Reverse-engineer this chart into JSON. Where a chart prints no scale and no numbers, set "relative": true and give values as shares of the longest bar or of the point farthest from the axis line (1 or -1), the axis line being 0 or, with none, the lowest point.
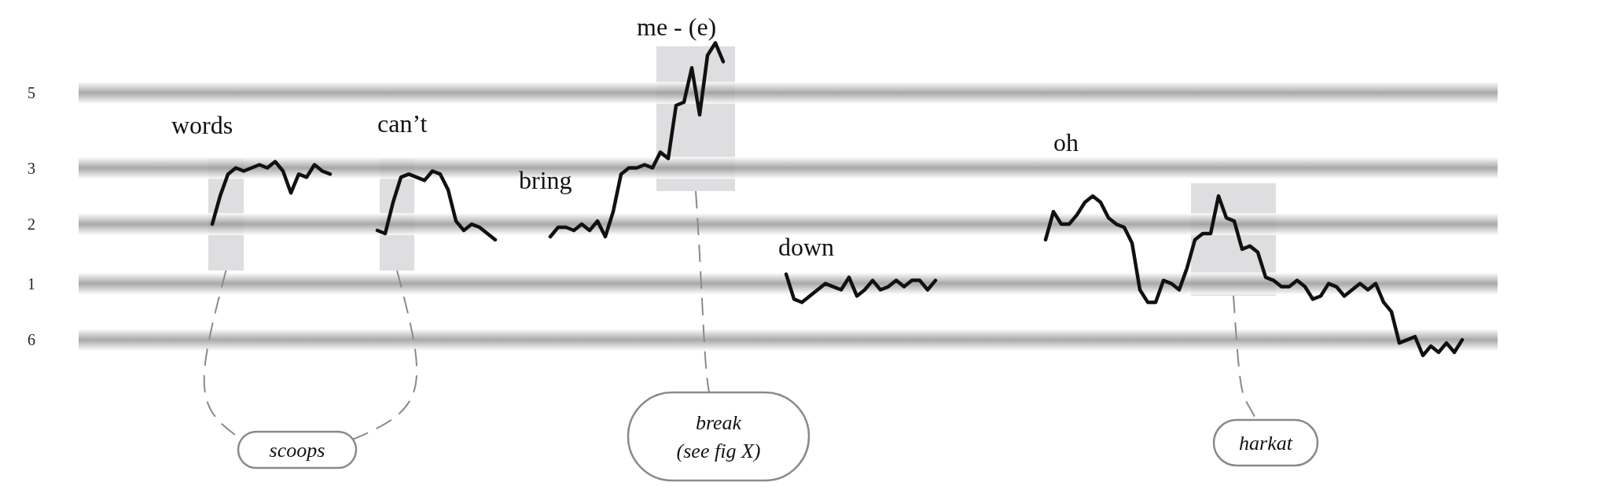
{
  "chart_data": {
    "type": "line",
    "relative": true,
    "categories": [
      null,
      null,
      null,
      null,
      null,
      null,
      null,
      null,
      null,
      null,
      null,
      null,
      null,
      null,
      null,
      null,
      null,
      null,
      null,
      null,
      null,
      null,
      null,
      null,
      null,
      null,
      null,
      null,
      null,
      null,
      null,
      null,
      null,
      null,
      null,
      null,
      null,
      null,
      null,
      null,
      null,
      null,
      null,
      null,
      null,
      null,
      null,
      null,
      null,
      null,
      null,
      null,
      null,
      null,
      null,
      null,
      null,
      null,
      null,
      null,
      null,
      null,
      null,
      null,
      null,
      null,
      null,
      null,
      null,
      null,
      null,
      null,
      null,
      null,
      null,
      null,
      null,
      null,
      null,
      null,
      null,
      null,
      null,
      null,
      null,
      null,
      null,
      null,
      null,
      null,
      null,
      null,
      null,
      null,
      null,
      null,
      null,
      null,
      null,
      null,
      null,
      null,
      null,
      null,
      null,
      null,
      null,
      null,
      null,
      null,
      null,
      null,
      null,
      null,
      null,
      null,
      null,
      null,
      null,
      null,
      null,
      null,
      null,
      null,
      null,
      null,
      null,
      null,
      null,
      null,
      null,
      null,
      null,
      null,
      null,
      null,
      null,
      null,
      null,
      null,
      null,
      null,
      null,
      null,
      null,
      null,
      null,
      null,
      null,
      null,
      null,
      null,
      null,
      null,
      null,
      null,
      null,
      null,
      null,
      null,
      null,
      null,
      null,
      null,
      null,
      null,
      null,
      null,
      null,
      null,
      null,
      null,
      null,
      null,
      null,
      null,
      null,
      null,
      null,
      null,
      null,
      null
    ],
    "series": [
      {
        "color": "#111111",
        "values": [
          null,
          null,
          null,
          null,
          null,
          null,
          null,
          null,
          null,
          null,
          null,
          null,
          null,
          null,
          null,
          null,
          null,
          0.42,
          0.51,
          0.58,
          0.6,
          0.59,
          0.6,
          0.61,
          0.6,
          0.62,
          0.59,
          0.52,
          0.58,
          0.57,
          0.61,
          0.59,
          0.58,
          null,
          null,
          null,
          null,
          null,
          null,
          null,
          null,
          null,
          null,
          null,
          null,
          null,
          null,
          null,
          null,
          null,
          null,
          null,
          null,
          null,
          null,
          null,
          null,
          null,
          null,
          null,
          null,
          null,
          null,
          null,
          null,
          null,
          null,
          null,
          null,
          null,
          null,
          null,
          null,
          null,
          null,
          null,
          null,
          null,
          null,
          null,
          null,
          null,
          null,
          null,
          null,
          null,
          null,
          null,
          null,
          null,
          null,
          null,
          null,
          null,
          null,
          null,
          null,
          null,
          null,
          null,
          null,
          null,
          null,
          null,
          null,
          null,
          null,
          null,
          null,
          null,
          null,
          null,
          null,
          null,
          null,
          null,
          null,
          null,
          null,
          null,
          null,
          null,
          null,
          null,
          null,
          null,
          null,
          null,
          null,
          null,
          null,
          null,
          null,
          null,
          null,
          null,
          null,
          null,
          null,
          null,
          null,
          null,
          null,
          null,
          null,
          null,
          null,
          null,
          null,
          null,
          null,
          null,
          null,
          null,
          null,
          null,
          null,
          null,
          null,
          null,
          null,
          null,
          null,
          null,
          null,
          null,
          null,
          null,
          null,
          null,
          null,
          null,
          null,
          null,
          null,
          null,
          null,
          null,
          null,
          null,
          null,
          null
        ]
      },
      {
        "color": "#111111",
        "values": [
          null,
          null,
          null,
          null,
          null,
          null,
          null,
          null,
          null,
          null,
          null,
          null,
          null,
          null,
          null,
          null,
          null,
          null,
          null,
          null,
          null,
          null,
          null,
          null,
          null,
          null,
          null,
          null,
          null,
          null,
          null,
          null,
          null,
          null,
          null,
          null,
          null,
          null,
          0.4,
          0.39,
          0.49,
          0.57,
          0.58,
          0.57,
          0.56,
          0.59,
          0.58,
          0.53,
          0.43,
          0.4,
          0.42,
          0.41,
          0.39,
          0.37,
          null,
          null,
          null,
          null,
          null,
          null,
          null,
          null,
          null,
          null,
          null,
          null,
          null,
          null,
          null,
          null,
          null,
          null,
          null,
          null,
          null,
          null,
          null,
          null,
          null,
          null,
          null,
          null,
          null,
          null,
          null,
          null,
          null,
          null,
          null,
          null,
          null,
          null,
          null,
          null,
          null,
          null,
          null,
          null,
          null,
          null,
          null,
          null,
          null,
          null,
          null,
          null,
          null,
          null,
          null,
          null,
          null,
          null,
          null,
          null,
          null,
          null,
          null,
          null,
          null,
          null,
          null,
          null,
          null,
          null,
          null,
          null,
          null,
          null,
          null,
          null,
          null,
          null,
          null,
          null,
          null,
          null,
          null,
          null,
          null,
          null,
          null,
          null,
          null,
          null,
          null,
          null,
          null,
          null,
          null,
          null,
          null,
          null,
          null,
          null,
          null,
          null,
          null,
          null,
          null,
          null,
          null,
          null,
          null,
          null,
          null,
          null,
          null,
          null,
          null,
          null,
          null,
          null,
          null,
          null,
          null,
          null,
          null,
          null,
          null,
          null,
          null,
          null
        ]
      },
      {
        "color": "#111111",
        "values": [
          null,
          null,
          null,
          null,
          null,
          null,
          null,
          null,
          null,
          null,
          null,
          null,
          null,
          null,
          null,
          null,
          null,
          null,
          null,
          null,
          null,
          null,
          null,
          null,
          null,
          null,
          null,
          null,
          null,
          null,
          null,
          null,
          null,
          null,
          null,
          null,
          null,
          null,
          null,
          null,
          null,
          null,
          null,
          null,
          null,
          null,
          null,
          null,
          null,
          null,
          null,
          null,
          null,
          null,
          null,
          null,
          null,
          null,
          null,
          null,
          0.38,
          0.41,
          0.41,
          0.4,
          0.42,
          0.4,
          0.43,
          0.38,
          0.46,
          0.58,
          0.6,
          0.6,
          0.61,
          0.6,
          0.65,
          0.63,
          0.8,
          0.81,
          0.92,
          0.77,
          0.96,
          1.0,
          0.94,
          null,
          null,
          null,
          null,
          null,
          null,
          null,
          null,
          null,
          null,
          null,
          null,
          null,
          null,
          null,
          null,
          null,
          null,
          null,
          null,
          null,
          null,
          null,
          null,
          null,
          null,
          null,
          null,
          null,
          null,
          null,
          null,
          null,
          null,
          null,
          null,
          null,
          null,
          null,
          null,
          null,
          null,
          null,
          null,
          null,
          null,
          null,
          null,
          null,
          null,
          null,
          null,
          null,
          null,
          null,
          null,
          null,
          null,
          null,
          null,
          null,
          null,
          null,
          null,
          null,
          null,
          null,
          null,
          null,
          null,
          null,
          null,
          null,
          null,
          null,
          null,
          null,
          null,
          null,
          null,
          null,
          null,
          null,
          null,
          null,
          null,
          null,
          null,
          null,
          null,
          null,
          null,
          null,
          null,
          null,
          null,
          null,
          null,
          null
        ]
      },
      {
        "color": "#111111",
        "values": [
          null,
          null,
          null,
          null,
          null,
          null,
          null,
          null,
          null,
          null,
          null,
          null,
          null,
          null,
          null,
          null,
          null,
          null,
          null,
          null,
          null,
          null,
          null,
          null,
          null,
          null,
          null,
          null,
          null,
          null,
          null,
          null,
          null,
          null,
          null,
          null,
          null,
          null,
          null,
          null,
          null,
          null,
          null,
          null,
          null,
          null,
          null,
          null,
          null,
          null,
          null,
          null,
          null,
          null,
          null,
          null,
          null,
          null,
          null,
          null,
          null,
          null,
          null,
          null,
          null,
          null,
          null,
          null,
          null,
          null,
          null,
          null,
          null,
          null,
          null,
          null,
          null,
          null,
          null,
          null,
          null,
          null,
          null,
          null,
          null,
          null,
          null,
          null,
          null,
          null,
          0.26,
          0.18,
          0.17,
          0.19,
          0.21,
          0.23,
          0.22,
          0.21,
          0.25,
          0.19,
          0.21,
          0.24,
          0.21,
          0.22,
          0.24,
          0.22,
          0.24,
          0.24,
          0.21,
          0.24,
          null,
          null,
          null,
          null,
          null,
          null,
          null,
          null,
          null,
          null,
          null,
          null,
          null,
          null,
          null,
          null,
          null,
          null,
          null,
          null,
          null,
          null,
          null,
          null,
          null,
          null,
          null,
          null,
          null,
          null,
          null,
          null,
          null,
          null,
          null,
          null,
          null,
          null,
          null,
          null,
          null,
          null,
          null,
          null,
          null,
          null,
          null,
          null,
          null,
          null,
          null,
          null,
          null,
          null,
          null,
          null,
          null,
          null,
          null,
          null,
          null,
          null,
          null,
          null,
          null,
          null,
          null,
          null,
          null,
          null,
          null,
          null
        ]
      },
      {
        "color": "#111111",
        "values": [
          null,
          null,
          null,
          null,
          null,
          null,
          null,
          null,
          null,
          null,
          null,
          null,
          null,
          null,
          null,
          null,
          null,
          null,
          null,
          null,
          null,
          null,
          null,
          null,
          null,
          null,
          null,
          null,
          null,
          null,
          null,
          null,
          null,
          null,
          null,
          null,
          null,
          null,
          null,
          null,
          null,
          null,
          null,
          null,
          null,
          null,
          null,
          null,
          null,
          null,
          null,
          null,
          null,
          null,
          null,
          null,
          null,
          null,
          null,
          null,
          null,
          null,
          null,
          null,
          null,
          null,
          null,
          null,
          null,
          null,
          null,
          null,
          null,
          null,
          null,
          null,
          null,
          null,
          null,
          null,
          null,
          null,
          null,
          null,
          null,
          null,
          null,
          null,
          null,
          null,
          null,
          null,
          null,
          null,
          null,
          null,
          null,
          null,
          null,
          null,
          null,
          null,
          null,
          null,
          null,
          null,
          null,
          null,
          null,
          null,
          null,
          null,
          null,
          null,
          null,
          null,
          null,
          null,
          null,
          null,
          null,
          null,
          null,
          0.37,
          0.46,
          0.42,
          0.42,
          0.45,
          0.49,
          0.51,
          0.49,
          0.44,
          0.42,
          0.41,
          0.36,
          0.21,
          0.17,
          0.17,
          0.24,
          0.23,
          0.21,
          0.28,
          0.37,
          0.39,
          0.39,
          0.51,
          0.44,
          0.43,
          0.34,
          0.35,
          0.33,
          0.25,
          0.24,
          0.22,
          0.22,
          0.24,
          0.22,
          0.18,
          0.19,
          0.23,
          0.22,
          0.19,
          0.21,
          0.23,
          0.21,
          0.23,
          0.17,
          0.14,
          0.04,
          0.05,
          0.06,
          0.0,
          0.03,
          0.01,
          0.04,
          0.01,
          0.05,
          null,
          null,
          null,
          null,
          null
        ]
      }
    ],
    "ref_lines": [
      {
        "axis": "y",
        "value": 0.84
      },
      {
        "axis": "y",
        "value": 0.6
      },
      {
        "axis": "y",
        "value": 0.42
      },
      {
        "axis": "y",
        "value": 0.23
      },
      {
        "axis": "y",
        "value": 0.05
      }
    ],
    "annotations": [
      "words",
      "can’t",
      "bring",
      "me - (e)",
      "down",
      "oh",
      "scoops",
      "break\n(see fig X)",
      "harkat",
      "5",
      "3",
      "2",
      "1",
      "6"
    ]
  }
}
